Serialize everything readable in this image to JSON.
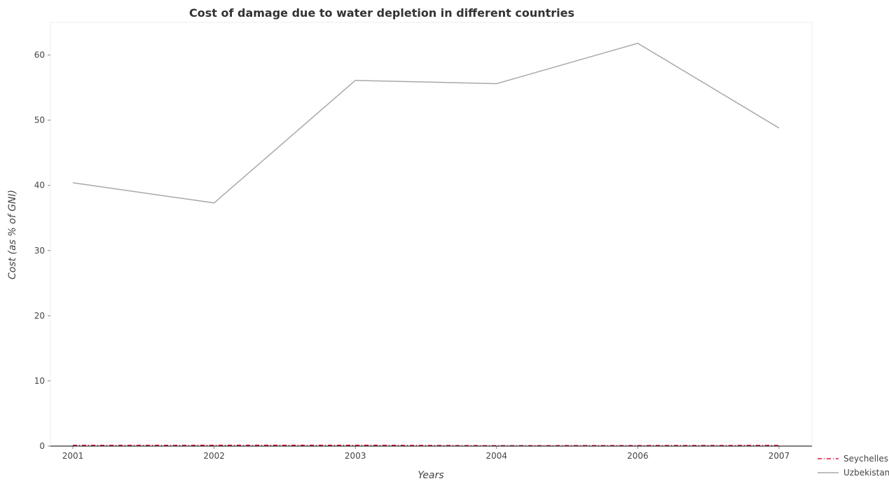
{
  "chart_data": {
    "type": "line",
    "title": "Cost of damage due to water depletion in different countries",
    "xlabel": "Years",
    "ylabel": "Cost (as % of GNI)",
    "categories": [
      "2001",
      "2002",
      "2003",
      "2004",
      "2006",
      "2007"
    ],
    "yticks": [
      0,
      10,
      20,
      30,
      40,
      50,
      60
    ],
    "ylim": [
      0,
      65
    ],
    "grid": false,
    "legend_position": "bottom-right",
    "series": [
      {
        "name": "Seychelles",
        "color": "#dc143c",
        "style": "dashdot",
        "values": [
          0.12,
          0.13,
          0.14,
          0.06,
          0.09,
          0.11
        ]
      },
      {
        "name": "Uzbekistan",
        "color": "#a9a9a9",
        "style": "solid",
        "values": [
          40.4,
          37.3,
          56.1,
          55.6,
          61.8,
          48.8
        ]
      }
    ]
  }
}
